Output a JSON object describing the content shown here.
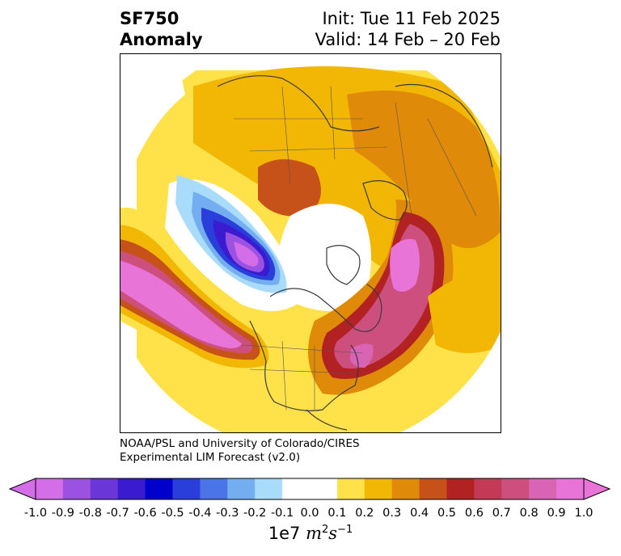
{
  "header": {
    "title_line1": "SF750",
    "title_line2": "Anomaly",
    "init": "Init: Tue 11 Feb 2025",
    "valid": "Valid: 14 Feb – 20 Feb"
  },
  "credit": {
    "line1": "NOAA/PSL and University of Colorado/CIRES",
    "line2": "Experimental LIM Forecast (v2.0)"
  },
  "colorbar": {
    "ticks": [
      "-1.0",
      "-0.9",
      "-0.8",
      "-0.7",
      "-0.6",
      "-0.5",
      "-0.4",
      "-0.3",
      "-0.2",
      "-0.1",
      "0.0",
      "0.1",
      "0.2",
      "0.3",
      "0.4",
      "0.5",
      "0.6",
      "0.7",
      "0.8",
      "0.9",
      "1.0"
    ],
    "colors": [
      "#d36ee8",
      "#9b52e0",
      "#6a36d8",
      "#3a1bd0",
      "#0000cc",
      "#2a3edc",
      "#4a74e8",
      "#74aef0",
      "#a8dcfa",
      "#ffffff",
      "#ffffff",
      "#ffe14a",
      "#f2b705",
      "#e08a0a",
      "#c6521a",
      "#b22222",
      "#c23a55",
      "#cc4f7d",
      "#d964b4",
      "#e974d8"
    ],
    "unit_base": "1e7",
    "unit_expr": "m",
    "unit_exp1": "2",
    "unit_mid": "s",
    "unit_exp2": "−1"
  },
  "map": {
    "projection": "north-polar-stereographic",
    "field": "streamfunction anomaly 750 hPa"
  }
}
